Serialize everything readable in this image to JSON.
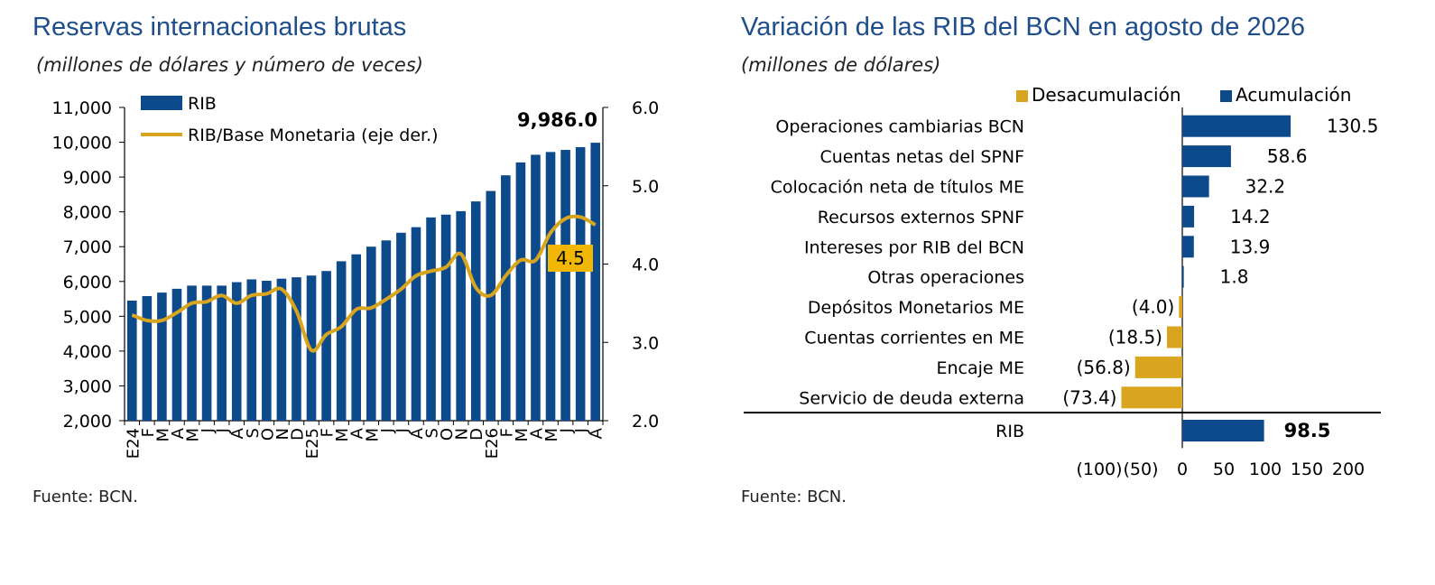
{
  "colors": {
    "navy": "#0d4a8c",
    "gold": "#d9a51e",
    "title_blue": "#1f4e8c"
  },
  "left": {
    "title": "Reservas internacionales brutas",
    "subtitle": "(millones de dólares y número de veces)",
    "source": "Fuente: BCN."
  },
  "right": {
    "title": "Variación de las RIB del BCN en agosto de 2026",
    "subtitle": "(millones de dólares)",
    "source": "Fuente: BCN."
  },
  "chart_data": [
    {
      "type": "bar",
      "title": "Reservas internacionales brutas",
      "subtitle": "(millones de dólares y número de veces)",
      "categories": [
        "E24",
        "F",
        "M",
        "A",
        "M",
        "J",
        "J",
        "A",
        "S",
        "O",
        "N",
        "D",
        "E25",
        "F",
        "M",
        "A",
        "M",
        "J",
        "J",
        "A",
        "S",
        "O",
        "N",
        "D",
        "E26",
        "F",
        "M",
        "A",
        "M",
        "J",
        "J",
        "A"
      ],
      "series": [
        {
          "name": "RIB",
          "type": "bar",
          "axis": "left",
          "values": [
            5450,
            5580,
            5680,
            5790,
            5880,
            5880,
            5880,
            5980,
            6060,
            6020,
            6080,
            6120,
            6170,
            6300,
            6580,
            6780,
            7000,
            7180,
            7400,
            7560,
            7840,
            7920,
            8020,
            8300,
            8600,
            9050,
            9420,
            9640,
            9720,
            9780,
            9860,
            9986
          ]
        },
        {
          "name": "RIB/Base Monetaria (eje der.)",
          "type": "line",
          "axis": "right",
          "values": [
            3.35,
            3.28,
            3.28,
            3.38,
            3.5,
            3.52,
            3.6,
            3.5,
            3.6,
            3.62,
            3.68,
            3.4,
            2.9,
            3.1,
            3.2,
            3.42,
            3.44,
            3.55,
            3.68,
            3.85,
            3.91,
            3.96,
            4.13,
            3.7,
            3.6,
            3.85,
            4.05,
            4.05,
            4.4,
            4.58,
            4.6,
            4.5
          ]
        }
      ],
      "yaxis_left": {
        "min": 2000,
        "max": 11000,
        "ticks": [
          "2,000",
          "3,000",
          "4,000",
          "5,000",
          "6,000",
          "7,000",
          "8,000",
          "9,000",
          "10,000",
          "11,000"
        ]
      },
      "yaxis_right": {
        "min": 2.0,
        "max": 6.0,
        "ticks": [
          "2.0",
          "3.0",
          "4.0",
          "5.0",
          "6.0"
        ]
      },
      "annotations": {
        "last_bar": "9,986.0",
        "last_ratio": "4.5"
      },
      "legend": "top-left",
      "grid": false
    },
    {
      "type": "bar",
      "orientation": "horizontal",
      "title": "Variación de las RIB del BCN en agosto de 2026",
      "subtitle": "(millones de dólares)",
      "legend_labels": [
        "Desacumulación",
        "Acumulación"
      ],
      "categories": [
        "Operaciones cambiarias BCN",
        "Cuentas netas del SPNF",
        "Colocación neta de títulos ME",
        "Recursos externos SPNF",
        "Intereses por RIB del BCN",
        "Otras operaciones",
        "Depósitos Monetarios ME",
        "Cuentas corrientes en ME",
        "Encaje ME",
        "Servicio de deuda externa",
        "RIB"
      ],
      "values": [
        130.5,
        58.6,
        32.2,
        14.2,
        13.9,
        1.8,
        -4.0,
        -18.5,
        -56.8,
        -73.4,
        98.5
      ],
      "value_labels": [
        "130.5",
        "58.6",
        "32.2",
        "14.2",
        "13.9",
        "1.8",
        "(4.0)",
        "(18.5)",
        "(56.8)",
        "(73.4)",
        "98.5"
      ],
      "xlim": [
        -100,
        200
      ],
      "xticks": [
        "(100)",
        "(50)",
        "0",
        "50",
        "100",
        "150",
        "200"
      ],
      "legend": "top-right",
      "grid": false
    }
  ]
}
